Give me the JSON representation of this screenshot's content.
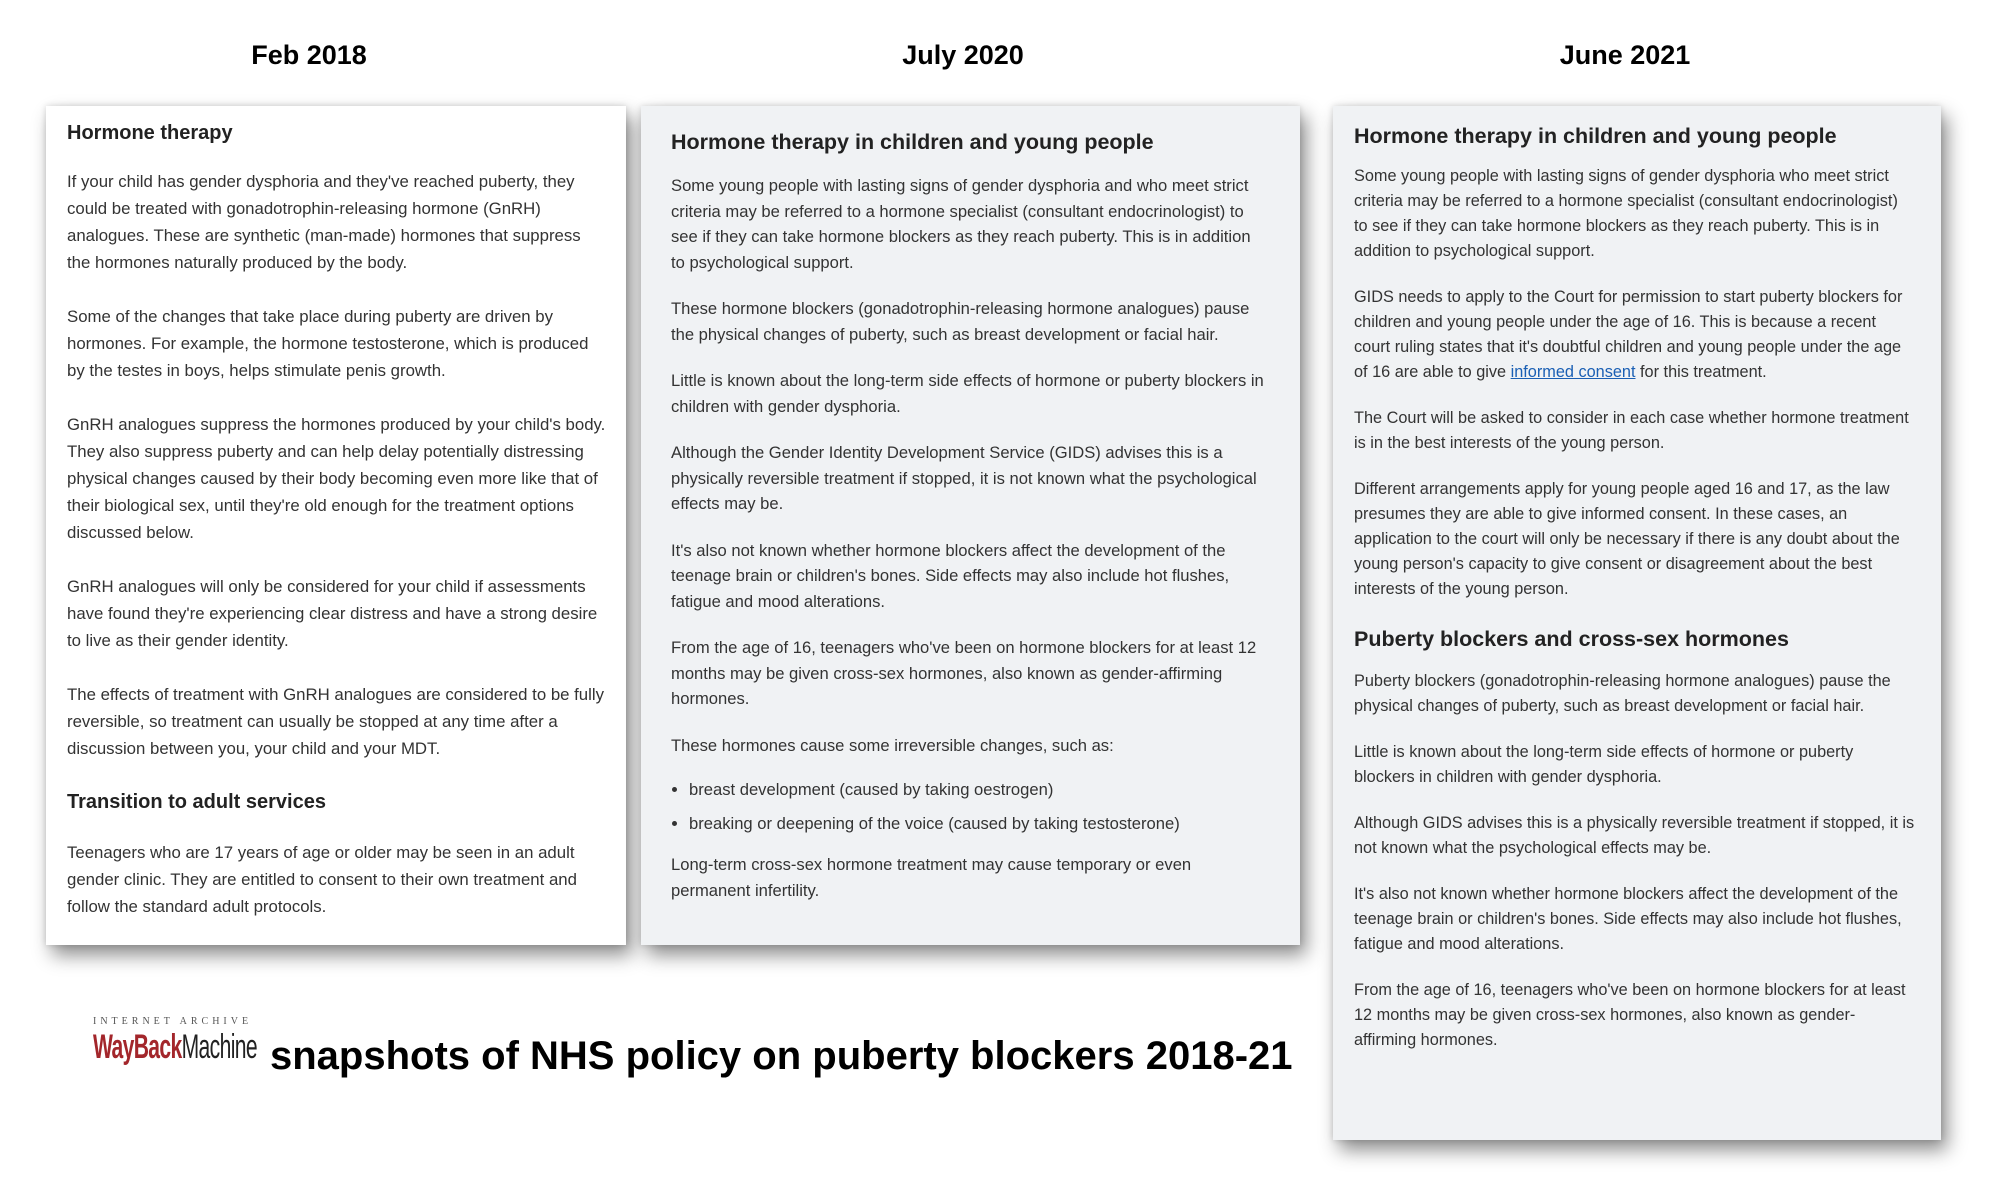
{
  "snapshots": [
    {
      "date": "Feb 2018",
      "heading": "Hormone therapy",
      "paragraphs": [
        "If your child has gender dysphoria and they've reached puberty, they could be treated with gonadotrophin-releasing hormone (GnRH) analogues. These are synthetic (man-made) hormones that suppress the hormones naturally produced by the body.",
        "Some of the changes that take place during puberty are driven by hormones. For example, the hormone testosterone, which is produced by the testes in boys, helps stimulate penis growth.",
        "GnRH analogues suppress the hormones produced by your child's body. They also suppress puberty and can help delay potentially distressing physical changes caused by their body becoming even more like that of their biological sex, until they're old enough for the treatment options discussed below.",
        "GnRH analogues will only be considered for your child if assessments have found they're experiencing clear distress and have a strong desire to live as their gender identity.",
        "The effects of treatment with GnRH analogues are considered to be fully reversible, so treatment can usually be stopped at any time after a discussion between you, your child and your MDT."
      ],
      "subheading": "Transition to adult services",
      "sub_paragraphs": [
        "Teenagers who are 17 years of age or older may be seen in an adult gender clinic. They are entitled to consent to their own treatment and follow the standard adult protocols."
      ]
    },
    {
      "date": "July 2020",
      "heading": "Hormone therapy in children and young people",
      "paragraphs": [
        "Some young people with lasting signs of gender dysphoria and who meet strict criteria may be referred to a hormone specialist (consultant endocrinologist) to see if they can take hormone blockers as they reach puberty. This is in addition to psychological support.",
        "These hormone blockers (gonadotrophin-releasing hormone analogues) pause the physical changes of puberty, such as breast development or facial hair.",
        "Little is known about the long-term side effects of hormone or puberty blockers in children with gender dysphoria.",
        "Although the Gender Identity Development Service (GIDS) advises this is a physically reversible treatment if stopped, it is not known what the psychological effects may be.",
        "It's also not known whether hormone blockers affect the development of the teenage brain or children's bones. Side effects may also include hot flushes, fatigue and mood alterations.",
        "From the age of 16, teenagers who've been on hormone blockers for at least 12 months may be given cross-sex hormones, also known as gender-affirming hormones.",
        "These hormones cause some irreversible changes, such as:"
      ],
      "bullets": [
        "breast development (caused by taking oestrogen)",
        "breaking or deepening of the voice (caused by taking testosterone)"
      ],
      "closing": "Long-term cross-sex hormone treatment may cause temporary or even permanent infertility."
    },
    {
      "date": "June 2021",
      "heading": "Hormone therapy in children and young people",
      "p1": "Some young people with lasting signs of gender dysphoria who meet strict criteria may be referred to a hormone specialist (consultant endocrinologist) to see if they can take hormone blockers as they reach puberty. This is in addition to psychological support.",
      "p2_before_link": "GIDS needs to apply to the Court for permission to start puberty blockers for children and young people under the age of 16. This is because a recent court ruling states that it's doubtful children and young people under the age of 16 are able to give ",
      "p2_link": "informed consent",
      "p2_after_link": " for this treatment.",
      "p3": "The Court will be asked to consider in each case whether hormone treatment is in the best interests of the young person.",
      "p4": "Different arrangements apply for young people aged 16 and 17, as the law presumes they are able to give informed consent. In these cases, an application to the court will only be necessary if there is any doubt about the young person's capacity to give consent or disagreement about the best interests of the young person.",
      "subheading": "Puberty blockers and cross-sex hormones",
      "sub_paragraphs": [
        "Puberty blockers (gonadotrophin-releasing hormone analogues) pause the physical changes of puberty, such as breast development or facial hair.",
        "Little is known about the long-term side effects of hormone or puberty blockers in children with gender dysphoria.",
        "Although GIDS advises this is a physically reversible treatment if stopped, it is not known what the psychological effects may be.",
        "It's also not known whether hormone blockers affect the development of the teenage brain or children's bones. Side effects may also include hot flushes, fatigue and mood alterations.",
        "From the age of 16, teenagers who've been on hormone blockers for at least 12 months may be given cross-sex hormones, also known as gender-affirming hormones."
      ]
    }
  ],
  "logo": {
    "top": "INTERNET ARCHIVE",
    "wayback": "WayBack",
    "machine": "Machine"
  },
  "caption": "snapshots of NHS policy on puberty blockers 2018-21",
  "colors": {
    "link": "#1a5fb4",
    "logo_red": "#a3262b",
    "panel_gray": "#f0f2f4"
  }
}
